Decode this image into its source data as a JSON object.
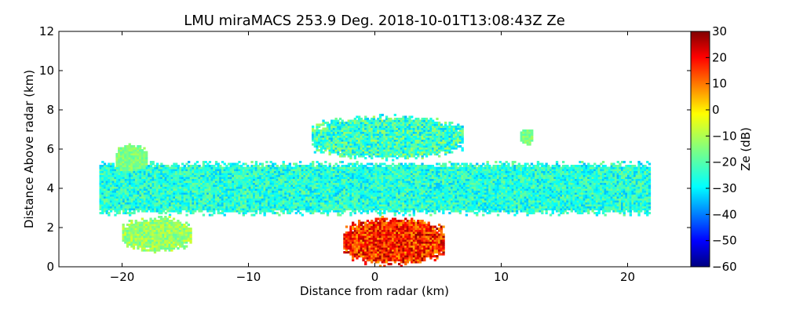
{
  "chart_data": {
    "type": "heatmap",
    "title": "LMU miraMACS 253.9 Deg. 2018-10-01T13:08:43Z  Ze",
    "xlabel": "Distance from radar (km)",
    "ylabel": "Distance Above radar  (km)",
    "xlim": [
      -25,
      25
    ],
    "ylim": [
      0,
      12
    ],
    "x_ticks": [
      -20,
      -10,
      0,
      10,
      20
    ],
    "x_tick_labels": [
      "−20",
      "−10",
      "0",
      "10",
      "20"
    ],
    "y_ticks": [
      0,
      2,
      4,
      6,
      8,
      10,
      12
    ],
    "y_tick_labels": [
      "0",
      "2",
      "4",
      "6",
      "8",
      "10",
      "12"
    ],
    "colorbar": {
      "label": "Ze (dB)",
      "range": [
        -60,
        30
      ],
      "ticks": [
        30,
        20,
        10,
        0,
        -10,
        -20,
        -30,
        -40,
        -50,
        -60
      ],
      "tick_labels": [
        "30",
        "20",
        "10",
        "0",
        "−10",
        "−20",
        "−30",
        "−40",
        "−50",
        "−60"
      ],
      "colormap": "jet"
    },
    "regions": [
      {
        "name": "main cloud layer",
        "x_range": [
          -21.8,
          21.8
        ],
        "y_range": [
          2.6,
          5.4
        ],
        "ze_range": [
          -35,
          -15
        ],
        "ze_typical": -25
      },
      {
        "name": "upper cloud",
        "x_range": [
          -5,
          7
        ],
        "y_range": [
          5.4,
          7.8
        ],
        "ze_range": [
          -35,
          -10
        ],
        "ze_typical": -22
      },
      {
        "name": "precipitation core",
        "x_range": [
          -2.5,
          5.5
        ],
        "y_range": [
          0,
          2.6
        ],
        "ze_range": [
          5,
          28
        ],
        "ze_typical": 18
      },
      {
        "name": "fall streaks left",
        "x_range": [
          -20,
          -14.5
        ],
        "y_range": [
          0.7,
          2.6
        ],
        "ze_range": [
          -20,
          -5
        ],
        "ze_typical": -12
      },
      {
        "name": "fallstreaks upper-left",
        "x_range": [
          -20.5,
          -18
        ],
        "y_range": [
          4.8,
          6.3
        ],
        "ze_range": [
          -20,
          -10
        ],
        "ze_typical": -15
      },
      {
        "name": "isolated echo right",
        "x_range": [
          11.5,
          12.5
        ],
        "y_range": [
          6.2,
          7.1
        ],
        "ze_range": [
          -20,
          -10
        ],
        "ze_typical": -15
      }
    ]
  }
}
